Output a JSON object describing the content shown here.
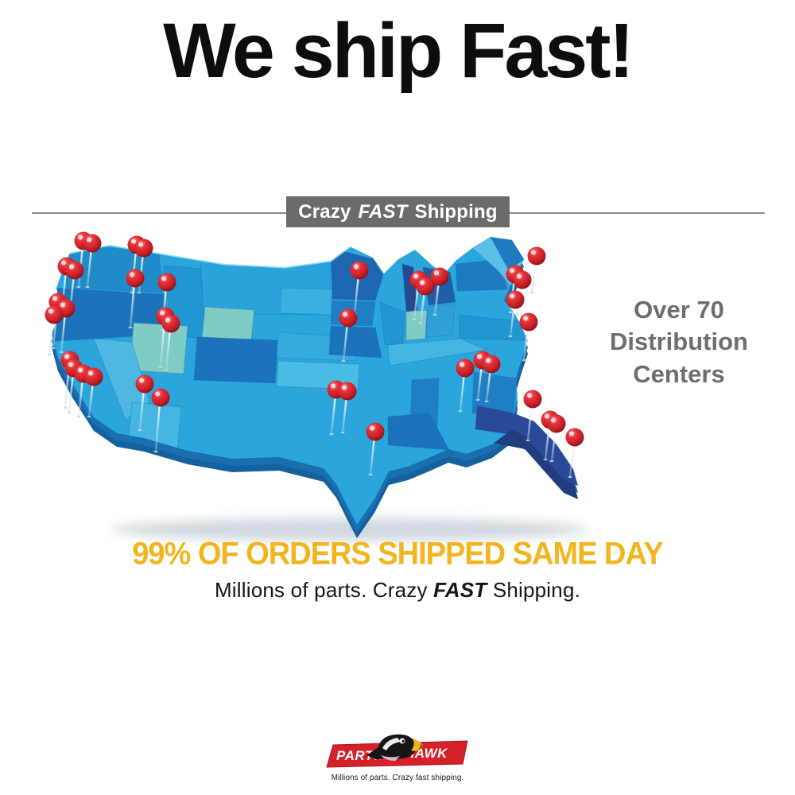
{
  "title": {
    "text": "We ship Fast!"
  },
  "ribbon": {
    "prefix": "Crazy ",
    "emphasis": "FAST",
    "suffix": " Shipping",
    "bg_color": "#6b6b6b",
    "text_color": "#ffffff"
  },
  "side_note": {
    "lines": [
      "Over 70",
      "Distribution",
      "Centers"
    ],
    "color": "#6d6e70"
  },
  "headline": {
    "text": "99% OF ORDERS SHIPPED SAME DAY",
    "color": "#f3b51e"
  },
  "subline": {
    "prefix": "Millions of parts. Crazy ",
    "emphasis": "FAST",
    "suffix": " Shipping."
  },
  "map": {
    "description": "3D USA map with red pushpins marking distribution centers",
    "pin_color": "#cc2127",
    "land_color": "#2aa6dd",
    "pins": [
      [
        85,
        25,
        58
      ],
      [
        96,
        28,
        55
      ],
      [
        152,
        30,
        60
      ],
      [
        161,
        34,
        56
      ],
      [
        64,
        57,
        55
      ],
      [
        74,
        62,
        52
      ],
      [
        150,
        72,
        62
      ],
      [
        190,
        77,
        60
      ],
      [
        53,
        102,
        58
      ],
      [
        63,
        110,
        55
      ],
      [
        48,
        118,
        50
      ],
      [
        188,
        120,
        64
      ],
      [
        195,
        129,
        58
      ],
      [
        68,
        175,
        60
      ],
      [
        73,
        185,
        56
      ],
      [
        85,
        192,
        54
      ],
      [
        98,
        196,
        50
      ],
      [
        162,
        205,
        58
      ],
      [
        182,
        222,
        68
      ],
      [
        432,
        62,
        54
      ],
      [
        507,
        74,
        50
      ],
      [
        515,
        82,
        46
      ],
      [
        533,
        70,
        48
      ],
      [
        418,
        122,
        54
      ],
      [
        403,
        212,
        56
      ],
      [
        417,
        214,
        52
      ],
      [
        452,
        265,
        54
      ],
      [
        565,
        185,
        54
      ],
      [
        587,
        175,
        50
      ],
      [
        598,
        180,
        47
      ],
      [
        655,
        44,
        46
      ],
      [
        628,
        67,
        48
      ],
      [
        637,
        74,
        44
      ],
      [
        628,
        99,
        46
      ],
      [
        645,
        127,
        48
      ],
      [
        650,
        224,
        52
      ],
      [
        672,
        250,
        50
      ],
      [
        680,
        255,
        47
      ],
      [
        703,
        272,
        50
      ]
    ]
  },
  "logo": {
    "left_word": "PARTS",
    "right_word": "HAWK",
    "tagline": "Millions of parts. Crazy fast shipping.",
    "bar_color": "#d7212a",
    "beak_color": "#f2b31c"
  }
}
